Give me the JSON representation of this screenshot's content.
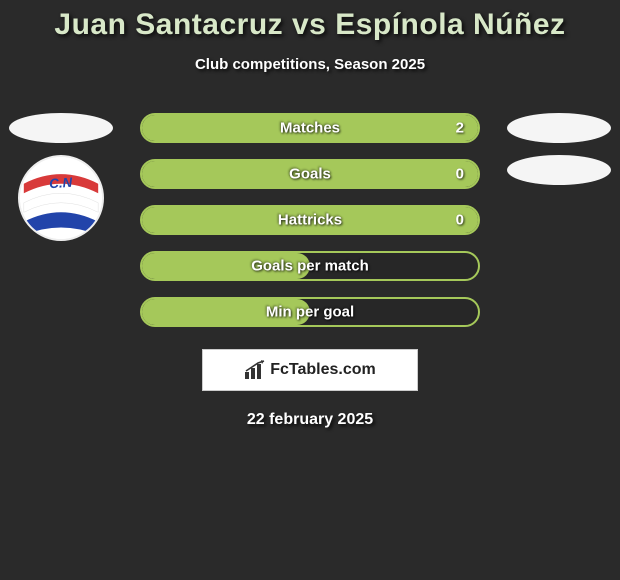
{
  "title": "Juan Santacruz vs Espínola Núñez",
  "subtitle": "Club competitions, Season 2025",
  "date": "22 february 2025",
  "logo_text": "FcTables.com",
  "colors": {
    "accent": "#a5c85a",
    "title": "#d8e8c8",
    "bg": "#2a2a2a",
    "badge_red": "#d83a3a",
    "badge_white": "#ffffff",
    "badge_blue": "#2244aa"
  },
  "stats": [
    {
      "label": "Matches",
      "value_right": "2",
      "fill_pct": 100,
      "show_value": true
    },
    {
      "label": "Goals",
      "value_right": "0",
      "fill_pct": 100,
      "show_value": true
    },
    {
      "label": "Hattricks",
      "value_right": "0",
      "fill_pct": 100,
      "show_value": true
    },
    {
      "label": "Goals per match",
      "value_right": "",
      "fill_pct": 50,
      "show_value": false
    },
    {
      "label": "Min per goal",
      "value_right": "",
      "fill_pct": 50,
      "show_value": false
    }
  ],
  "avatars": {
    "left": {
      "has_badge": true
    },
    "right": {
      "has_badge": false
    }
  }
}
